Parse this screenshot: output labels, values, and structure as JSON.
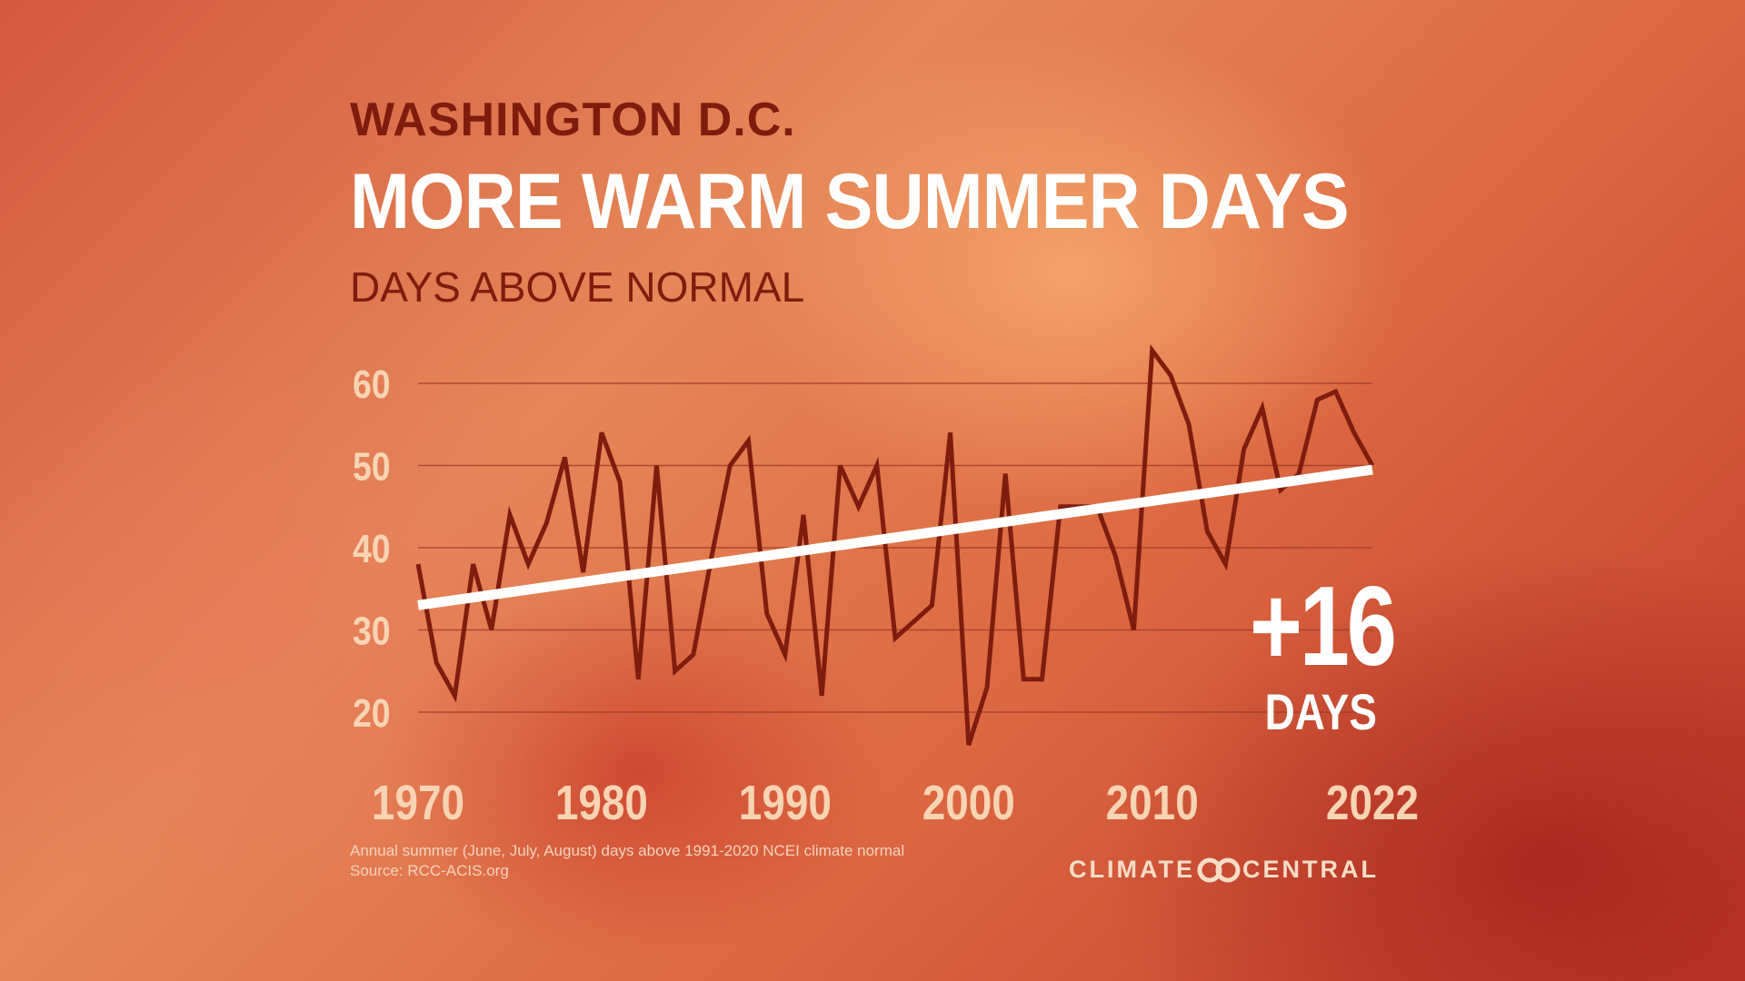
{
  "header": {
    "city": "WASHINGTON D.C.",
    "title": "MORE WARM SUMMER DAYS",
    "subtitle": "DAYS ABOVE NORMAL"
  },
  "stat": {
    "value": "+16",
    "unit": "DAYS"
  },
  "footnote": {
    "line1": "Annual summer (June, July, August) days above 1991-2020 NCEI climate normal",
    "line2": "Source: RCC-ACIS.org"
  },
  "brand": {
    "left": "CLIMATE",
    "right": "CENTRAL",
    "icon": "climate-central-logo"
  },
  "colors": {
    "line": "#7e1d0e",
    "trend": "#ffffff",
    "tick": "#f8d4b4",
    "grid": "#a33b28"
  },
  "chart_data": {
    "type": "line",
    "title": "MORE WARM SUMMER DAYS",
    "ylabel": "DAYS ABOVE NORMAL",
    "ylim": [
      20,
      60
    ],
    "yticks": [
      60,
      50,
      40,
      30,
      20
    ],
    "xlim": [
      1970,
      2022
    ],
    "xticks": [
      1970,
      1980,
      1990,
      2000,
      2010,
      2022
    ],
    "grid": true,
    "x": [
      1970,
      1971,
      1972,
      1973,
      1974,
      1975,
      1976,
      1977,
      1978,
      1979,
      1980,
      1981,
      1982,
      1983,
      1984,
      1985,
      1986,
      1987,
      1988,
      1989,
      1990,
      1991,
      1992,
      1993,
      1994,
      1995,
      1996,
      1997,
      1998,
      1999,
      2000,
      2001,
      2002,
      2003,
      2004,
      2005,
      2006,
      2007,
      2008,
      2009,
      2010,
      2011,
      2012,
      2013,
      2014,
      2015,
      2016,
      2017,
      2018,
      2019,
      2020,
      2021,
      2022
    ],
    "series": [
      {
        "values": [
          38,
          26,
          22,
          38,
          30,
          44,
          38,
          43,
          51,
          37,
          54,
          48,
          24,
          50,
          25,
          27,
          39,
          50,
          53,
          32,
          27,
          44,
          22,
          50,
          45,
          50,
          29,
          31,
          33,
          54,
          16,
          23,
          49,
          24,
          24,
          45,
          45,
          45,
          39,
          30,
          64,
          61,
          55,
          42,
          38,
          52,
          57,
          47,
          49,
          58,
          59,
          54,
          50
        ]
      }
    ],
    "trend": {
      "start": [
        1970,
        33
      ],
      "end": [
        2022,
        49.5
      ]
    },
    "annotation": "+16 DAYS"
  }
}
